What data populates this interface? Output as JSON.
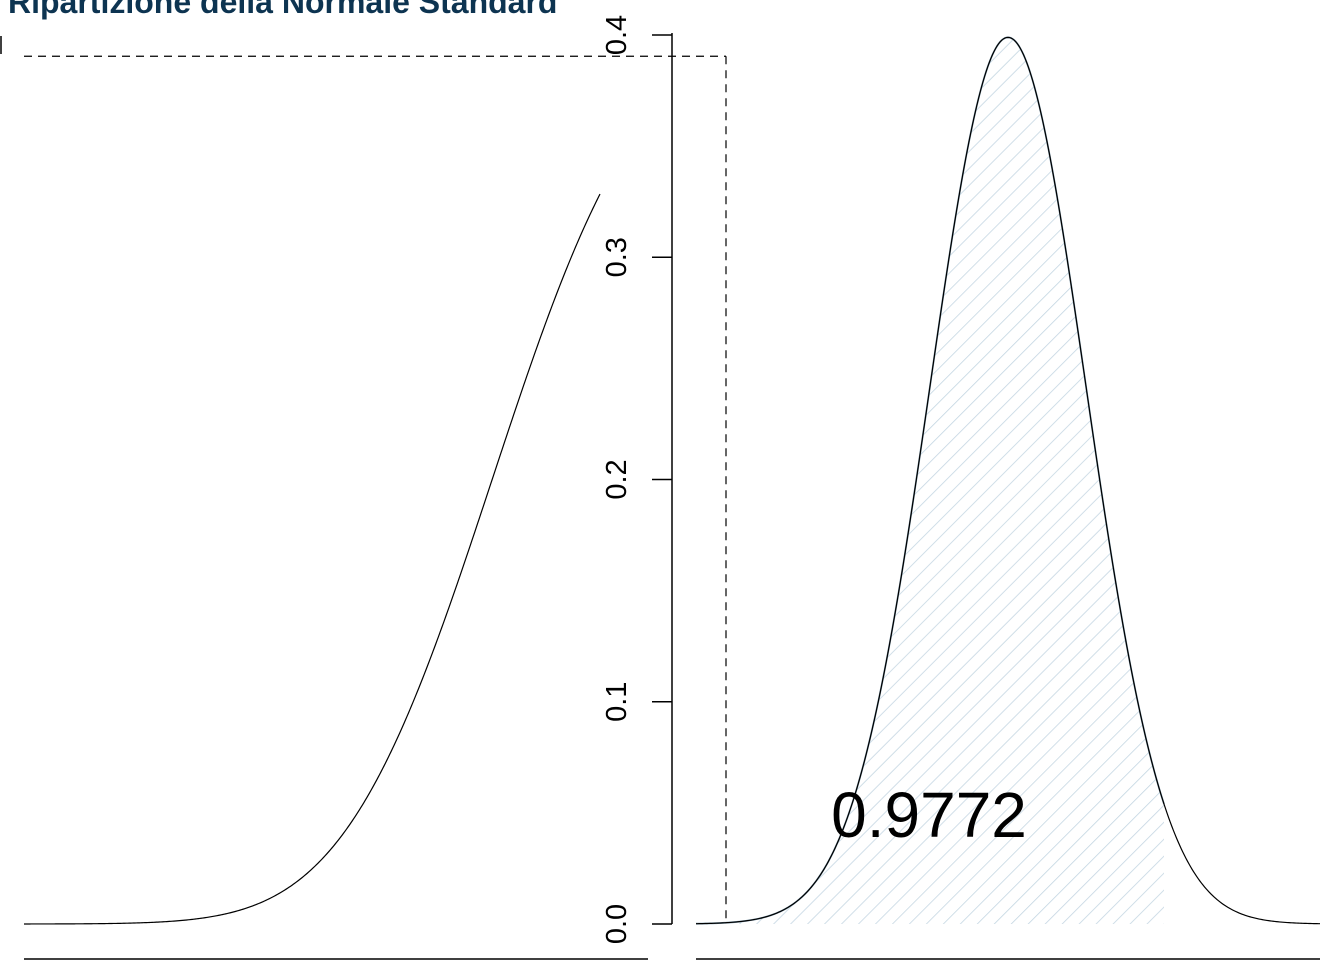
{
  "chart_data": [
    {
      "type": "line",
      "title": "Ripartizione della Normale Standard",
      "xlabel": "",
      "ylabel": "",
      "xlim": [
        -4,
        4
      ],
      "ylim": [
        0,
        1
      ],
      "function": "standard-normal-cdf",
      "mark_x": 2,
      "mark_y": 0.9772,
      "colors": {
        "curve": "#000000",
        "title": "#0d3451"
      }
    },
    {
      "type": "area",
      "title": "",
      "xlabel": "",
      "ylabel": "",
      "xlim": [
        -4,
        4
      ],
      "ylim": [
        0,
        0.4
      ],
      "yticks": [
        "0.0",
        "0.1",
        "0.2",
        "0.3",
        "0.4"
      ],
      "function": "standard-normal-pdf",
      "shade_to": 2,
      "area_label": "0.9772",
      "colors": {
        "curve": "#000000",
        "fill_hatch": "#c5d6e2",
        "fill_edge": "#7a98ab"
      }
    }
  ]
}
